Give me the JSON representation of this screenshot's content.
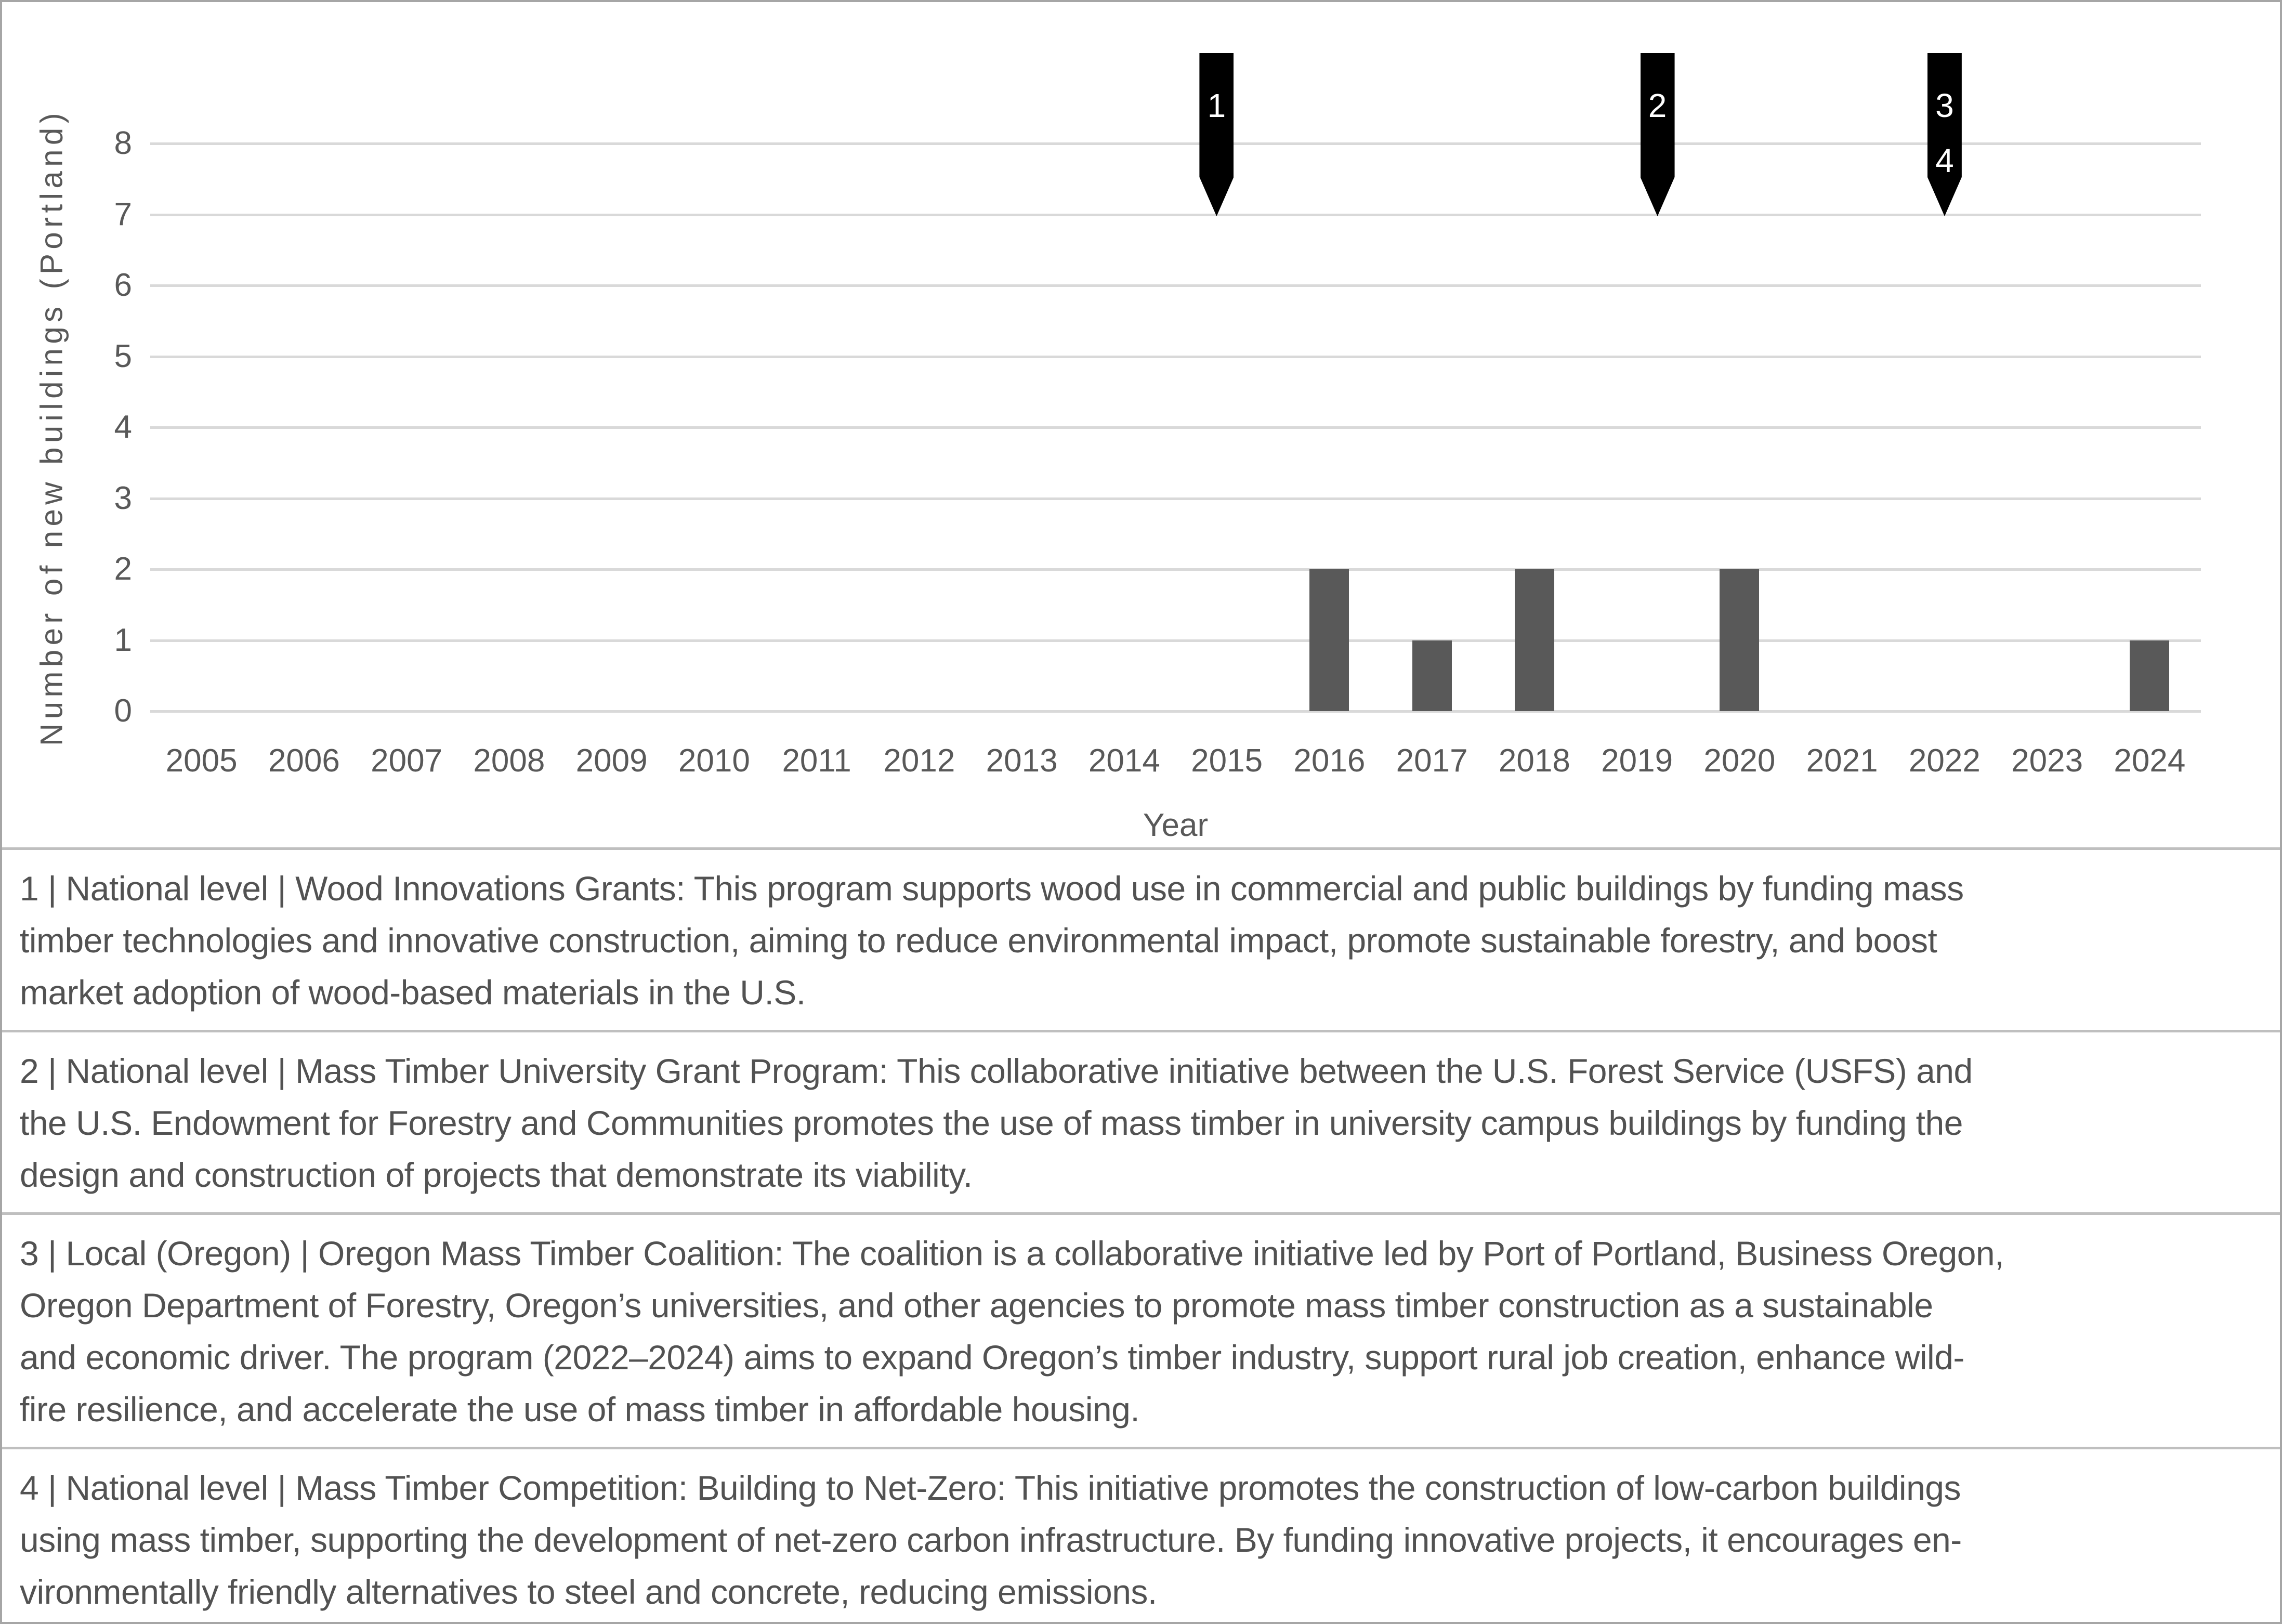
{
  "figure": {
    "background": "#ffffff",
    "border_color": "#a6a6a6",
    "rule_color": "#bfbfbf"
  },
  "chart": {
    "y_axis_title": "Number of new buildings (Portland)",
    "x_axis_title": "Year",
    "text_color": "#595959",
    "gridline_color": "#d9d9d9",
    "bar_color": "#595959",
    "marker_color": "#000000",
    "marker_label_color": "#ffffff"
  },
  "chart_data": {
    "type": "bar",
    "title": "",
    "xlabel": "Year",
    "ylabel": "Number of new buildings (Portland)",
    "categories": [
      "2005",
      "2006",
      "2007",
      "2008",
      "2009",
      "2010",
      "2011",
      "2012",
      "2013",
      "2014",
      "2015",
      "2016",
      "2017",
      "2018",
      "2019",
      "2020",
      "2021",
      "2022",
      "2023",
      "2024"
    ],
    "values": [
      0,
      0,
      0,
      0,
      0,
      0,
      0,
      0,
      0,
      0,
      0,
      2,
      1,
      2,
      0,
      2,
      0,
      0,
      0,
      1
    ],
    "ylim": [
      0,
      8
    ],
    "yticks": [
      0,
      1,
      2,
      3,
      4,
      5,
      6,
      7,
      8
    ],
    "grid": true,
    "legend": false,
    "annotations": [
      {
        "labels": [
          "1"
        ],
        "x_year": 2014.9
      },
      {
        "labels": [
          "2"
        ],
        "x_year": 2019.2
      },
      {
        "labels": [
          "3",
          "4"
        ],
        "x_year": 2022.0
      }
    ]
  },
  "notes": [
    {
      "lines": [
        "1 | National level | Wood Innovations Grants: This program supports wood use in commercial and public buildings by funding mass",
        "timber technologies and innovative construction, aiming to reduce environmental impact, promote sustainable forestry, and boost",
        "market adoption of wood-based materials in the U.S."
      ]
    },
    {
      "lines": [
        "2 | National level | Mass Timber University Grant Program: This collaborative initiative between the U.S. Forest Service (USFS) and",
        "the U.S. Endowment for Forestry and Communities promotes the use of mass timber in university campus buildings by funding the",
        "design and construction of projects that demonstrate its viability."
      ]
    },
    {
      "lines": [
        "3 | Local (Oregon) | Oregon Mass Timber Coalition: The coalition is a collaborative initiative led by Port of Portland, Business Oregon,",
        "Oregon Department of Forestry, Oregon’s universities, and other agencies to promote mass timber construction as a sustainable",
        "and economic driver. The program (2022–2024) aims to expand Oregon’s timber industry, support rural job creation, enhance wild-",
        "fire resilience, and accelerate the use of mass timber in affordable housing."
      ]
    },
    {
      "lines": [
        "4 | National level | Mass Timber Competition: Building to Net-Zero: This initiative promotes the construction of low-carbon buildings",
        "using mass timber, supporting the development of net-zero carbon infrastructure. By funding innovative projects, it encourages en-",
        "vironmentally friendly alternatives to steel and concrete, reducing emissions."
      ]
    }
  ]
}
